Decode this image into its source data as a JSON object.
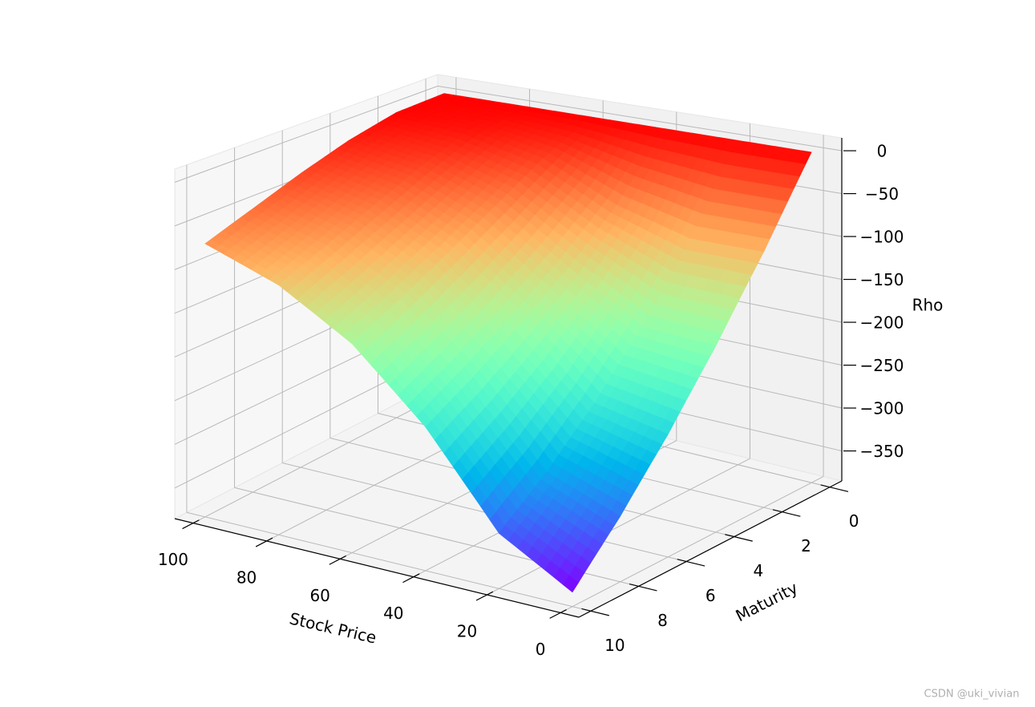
{
  "chart_data": {
    "type": "surface",
    "x_label": "Stock Price",
    "y_label": "Maturity",
    "z_label": "Rho",
    "x": [
      0,
      20,
      40,
      60,
      80,
      100
    ],
    "y": [
      0,
      2,
      4,
      6,
      8,
      10
    ],
    "z": [
      [
        0,
        0,
        0,
        0,
        0,
        0
      ],
      [
        -94,
        -94,
        -70,
        -29,
        -9,
        -2
      ],
      [
        -177,
        -172,
        -120,
        -64,
        -31,
        -15
      ],
      [
        -251,
        -234,
        -162,
        -97,
        -56,
        -33
      ],
      [
        -315,
        -285,
        -198,
        -127,
        -81,
        -53
      ],
      [
        -370,
        -326,
        -229,
        -154,
        -104,
        -72
      ]
    ],
    "xlim": [
      -5,
      105
    ],
    "ylim": [
      -0.5,
      10.5
    ],
    "zlim": [
      -385,
      15
    ],
    "xticks": [
      0,
      20,
      40,
      60,
      80,
      100
    ],
    "yticks": [
      0,
      2,
      4,
      6,
      8,
      10
    ],
    "zticks": [
      0,
      {
        "value": -50,
        "label": "−50"
      },
      {
        "value": -100,
        "label": "−100"
      },
      {
        "value": -150,
        "label": "−150"
      },
      {
        "value": -200,
        "label": "−200"
      },
      {
        "value": -250,
        "label": "−250"
      },
      {
        "value": -300,
        "label": "−300"
      },
      {
        "value": -350,
        "label": "−350"
      }
    ],
    "colormap": "rainbow",
    "grid": true
  },
  "watermark": "CSDN @uki_vivian"
}
